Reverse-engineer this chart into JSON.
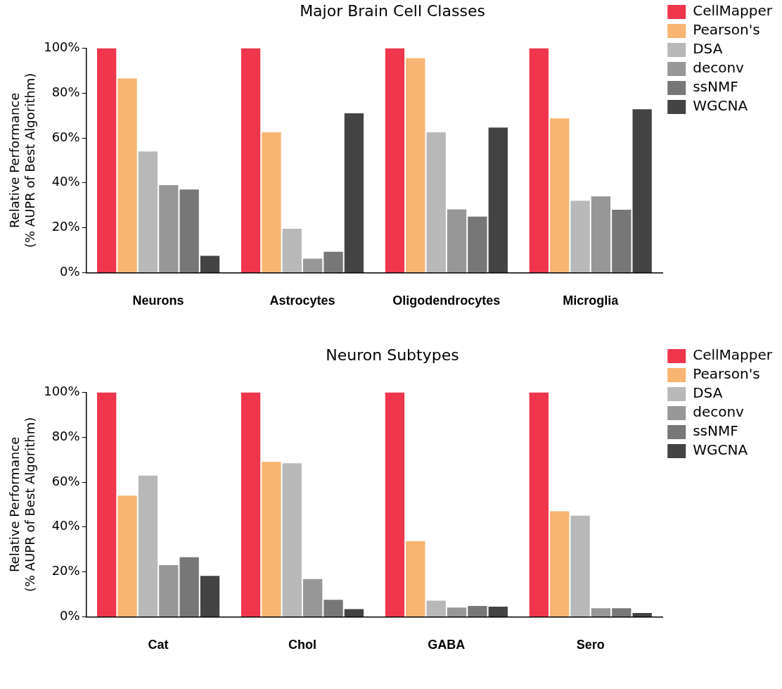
{
  "chart_data": [
    {
      "type": "bar",
      "title": "Major Brain Cell Classes",
      "ylabel": "Relative Performance\n(% AUPR of Best Algorithm)",
      "categories": [
        "Neurons",
        "Astrocytes",
        "Oligodendrocytes",
        "Microglia"
      ],
      "series": [
        {
          "name": "CellMapper",
          "color": "#ef364c",
          "values": [
            100,
            100,
            100,
            100
          ]
        },
        {
          "name": "Pearson's",
          "color": "#f8b470",
          "values": [
            86.5,
            62.5,
            95.5,
            68.7
          ]
        },
        {
          "name": "DSA",
          "color": "#b8b8b8",
          "values": [
            54,
            19.6,
            62.5,
            32
          ]
        },
        {
          "name": "deconv",
          "color": "#979797",
          "values": [
            39,
            6.2,
            28.2,
            34
          ]
        },
        {
          "name": "ssNMF",
          "color": "#777777",
          "values": [
            37,
            9.3,
            25,
            28
          ]
        },
        {
          "name": "WGCNA",
          "color": "#434343",
          "values": [
            7.5,
            71,
            64.6,
            72.8
          ]
        }
      ],
      "ylim": [
        0,
        100
      ],
      "yticks": [
        {
          "value": 0,
          "label": "0%"
        },
        {
          "value": 20,
          "label": "20%"
        },
        {
          "value": 40,
          "label": "40%"
        },
        {
          "value": 60,
          "label": "60%"
        },
        {
          "value": 80,
          "label": "80%"
        },
        {
          "value": 100,
          "label": "100%"
        }
      ],
      "grid": false,
      "legend": "top right"
    },
    {
      "type": "bar",
      "title": "Neuron Subtypes",
      "ylabel": "Relative Performance\n(% AUPR of Best Algorithm)",
      "categories": [
        "Cat",
        "Chol",
        "GABA",
        "Sero"
      ],
      "series": [
        {
          "name": "CellMapper",
          "color": "#ef364c",
          "values": [
            100,
            100,
            100,
            100
          ]
        },
        {
          "name": "Pearson's",
          "color": "#f8b470",
          "values": [
            54,
            69,
            33.7,
            47
          ]
        },
        {
          "name": "DSA",
          "color": "#b8b8b8",
          "values": [
            62.9,
            68.4,
            7.2,
            45
          ]
        },
        {
          "name": "deconv",
          "color": "#979797",
          "values": [
            23,
            16.8,
            4.1,
            3.8
          ]
        },
        {
          "name": "ssNMF",
          "color": "#777777",
          "values": [
            26.5,
            7.6,
            4.8,
            3.8
          ]
        },
        {
          "name": "WGCNA",
          "color": "#434343",
          "values": [
            18.2,
            3.4,
            4.5,
            1.7
          ]
        }
      ],
      "ylim": [
        0,
        100
      ],
      "yticks": [
        {
          "value": 0,
          "label": "0%"
        },
        {
          "value": 20,
          "label": "20%"
        },
        {
          "value": 40,
          "label": "40%"
        },
        {
          "value": 60,
          "label": "60%"
        },
        {
          "value": 80,
          "label": "80%"
        },
        {
          "value": 100,
          "label": "100%"
        }
      ],
      "grid": false,
      "legend": "top right"
    }
  ]
}
